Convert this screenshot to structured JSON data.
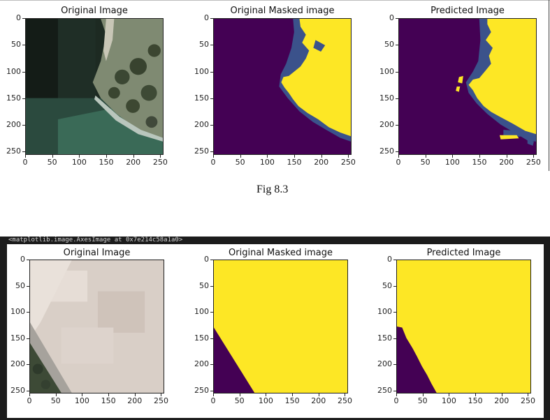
{
  "figure_top": {
    "panels": [
      {
        "title": "Original Image"
      },
      {
        "title": "Original Masked image"
      },
      {
        "title": "Predicted Image"
      }
    ],
    "caption": "Fig 8.3"
  },
  "figure_bottom": {
    "output_text": "<matplotlib.image.AxesImage at 0x7e214c58a1a0>",
    "panels": [
      {
        "title": "Original Image"
      },
      {
        "title": "Original Masked image"
      },
      {
        "title": "Predicted Image"
      }
    ]
  },
  "axis_ticks": {
    "y": [
      "0",
      "50",
      "100",
      "150",
      "200",
      "250"
    ],
    "x": [
      "0",
      "50",
      "100",
      "150",
      "200",
      "250"
    ]
  },
  "colors": {
    "mask_dark": "#440154",
    "mask_yellow": "#fde725",
    "mask_blue": "#3b528b",
    "frame_dark": "#1c1c1c"
  }
}
